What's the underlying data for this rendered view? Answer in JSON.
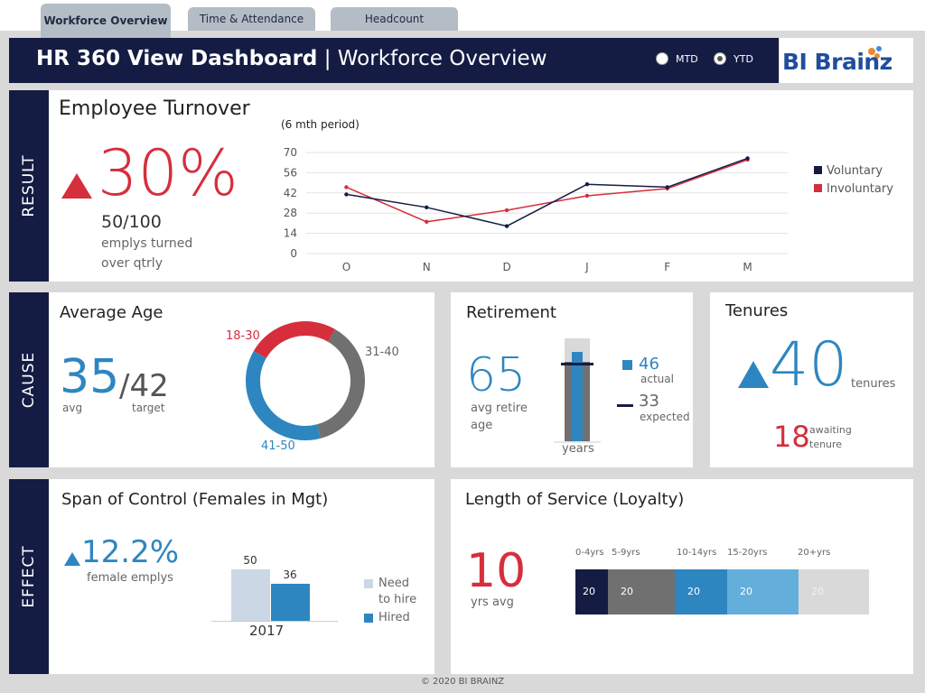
{
  "tabs": [
    {
      "label": "Workforce Overview"
    },
    {
      "label": "Time & Attendance"
    },
    {
      "label": "Headcount"
    }
  ],
  "header": {
    "title_bold": "HR 360 View Dashboard",
    "separator": " | ",
    "title_light": "Workforce Overview",
    "radio_mtd": "MTD",
    "radio_ytd": "YTD",
    "selected": "YTD",
    "logo_text": "BI Brainz"
  },
  "sections": {
    "result": "RESULT",
    "cause": "CAUSE",
    "effect": "EFFECT"
  },
  "turnover": {
    "title": "Employee Turnover",
    "percent": "30%",
    "ratio": "50/100",
    "desc_line1": "emplys turned",
    "desc_line2": "over qtrly",
    "period": "(6 mth period)"
  },
  "chart_data": {
    "type": "line",
    "categories": [
      "O",
      "N",
      "D",
      "J",
      "F",
      "M"
    ],
    "series": [
      {
        "name": "Voluntary",
        "values": [
          41,
          32,
          19,
          48,
          46,
          66
        ],
        "color": "#141c44"
      },
      {
        "name": "Involuntary",
        "values": [
          46,
          22,
          30,
          40,
          45,
          65
        ],
        "color": "#d62e3c"
      }
    ],
    "yticks": [
      "70",
      "56",
      "42",
      "28",
      "14",
      "0"
    ],
    "ylim": [
      0,
      70
    ],
    "legend": "right"
  },
  "age": {
    "title": "Average Age",
    "avg": "35",
    "slash_target": "/42",
    "avg_label": "avg",
    "target_label": "target",
    "donut": [
      {
        "label": "18-30",
        "value": 25,
        "color": "#d62e3c"
      },
      {
        "label": "31-40",
        "value": 37.5,
        "color": "#707070"
      },
      {
        "label": "41-50",
        "value": 37.5,
        "color": "#2e86c1"
      }
    ]
  },
  "retirement": {
    "title": "Retirement",
    "value": "65",
    "label_line1": "avg retire",
    "label_line2": "age",
    "actual_value": "46",
    "actual_label": "actual",
    "expected_value": "33",
    "expected_label": "expected",
    "axis_label": "years"
  },
  "tenures": {
    "title": "Tenures",
    "value": "40",
    "value_label": "tenures",
    "awaiting_value": "18",
    "awaiting_line1": "awaiting",
    "awaiting_line2": "tenure"
  },
  "span": {
    "title": "Span of Control (Females in Mgt)",
    "percent": "12.2%",
    "label": "female emplys",
    "bars": [
      {
        "name": "Need to hire",
        "value": 50,
        "value_label": "50",
        "color": "#ccd7e6"
      },
      {
        "name": "Hired",
        "value": 36,
        "value_label": "36",
        "color": "#2e86c1"
      }
    ],
    "year": "2017",
    "legend_need_line1": "Need",
    "legend_need_line2": "to hire",
    "legend_hired": "Hired"
  },
  "service": {
    "title": "Length of Service (Loyalty)",
    "value": "10",
    "label": "yrs avg",
    "segments": [
      {
        "label": "0-4yrs",
        "value": "20",
        "color": "#141c44"
      },
      {
        "label": "5-9yrs",
        "value": "20",
        "color": "#707070"
      },
      {
        "label": "10-14yrs",
        "value": "20",
        "color": "#2e86c1"
      },
      {
        "label": "15-20yrs",
        "value": "20",
        "color": "#64aedc"
      },
      {
        "label": "20+yrs",
        "value": "20",
        "color": "#d9d9d9"
      }
    ]
  },
  "footer": "© 2020 BI BRAINZ"
}
